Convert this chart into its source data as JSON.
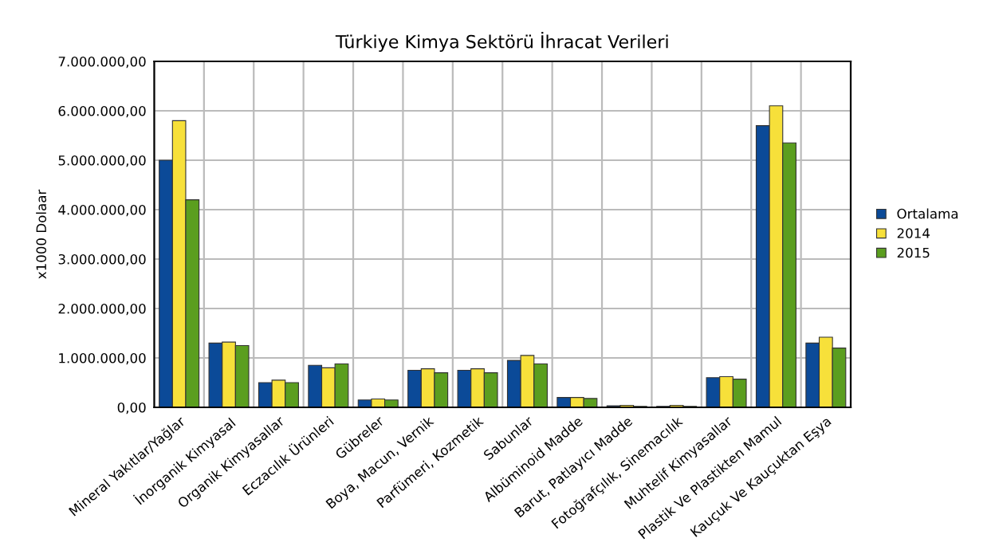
{
  "chart_data": {
    "type": "bar",
    "title": "Türkiye Kimya Sektörü İhracat Verileri",
    "ylabel": "x1000 Dolaar",
    "categories": [
      "Mineral Yakıtlar/Yağlar",
      "İnorganik Kimyasal",
      "Organik Kimyasallar",
      "Eczacılık Ürünleri",
      "Gübreler",
      "Boya, Macun, Vernik",
      "Parfümeri, Kozmetik",
      "Sabunlar",
      "Albüminoid Madde",
      "Barut, Patlayıcı Madde",
      "Fotoğrafçılık, Sinemacılık",
      "Muhtelif Kimyasallar",
      "Plastik Ve Plastikten Mamul",
      "Kauçuk Ve Kauçuktan Eşya"
    ],
    "series": [
      {
        "name": "Ortalama",
        "color": "#0b4a98",
        "values": [
          5000000,
          1300000,
          500000,
          850000,
          150000,
          750000,
          750000,
          950000,
          200000,
          30000,
          20000,
          600000,
          5700000,
          1300000
        ]
      },
      {
        "name": "2014",
        "color": "#f7e03a",
        "values": [
          5800000,
          1320000,
          550000,
          800000,
          170000,
          780000,
          780000,
          1050000,
          200000,
          40000,
          40000,
          620000,
          6100000,
          1420000
        ]
      },
      {
        "name": "2015",
        "color": "#5b9e1f",
        "values": [
          4200000,
          1250000,
          500000,
          880000,
          150000,
          700000,
          700000,
          880000,
          180000,
          20000,
          20000,
          570000,
          5350000,
          1200000
        ]
      }
    ],
    "ylim": [
      0,
      7000000
    ],
    "yticks": [
      {
        "value": 0,
        "label": "0,00"
      },
      {
        "value": 1000000,
        "label": "1.000.000,00"
      },
      {
        "value": 2000000,
        "label": "2.000.000,00"
      },
      {
        "value": 3000000,
        "label": "3.000.000,00"
      },
      {
        "value": 4000000,
        "label": "4.000.000,00"
      },
      {
        "value": 5000000,
        "label": "5.000.000,00"
      },
      {
        "value": 6000000,
        "label": "6.000.000,00"
      },
      {
        "value": 7000000,
        "label": "7.000.000,00"
      }
    ],
    "grid": true,
    "legend": "right"
  }
}
